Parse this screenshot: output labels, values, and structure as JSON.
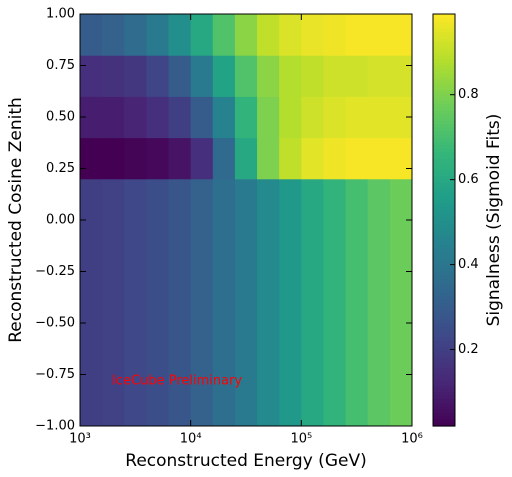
{
  "chart_data": {
    "type": "heatmap",
    "xlabel": "Reconstructed Energy (GeV)",
    "ylabel": "Reconstructed Cosine Zenith",
    "colorbar_label": "Signalness (Sigmoid Fits)",
    "annotation": "IceCube Preliminary",
    "annotation_color": "#ff0000",
    "colormap": "viridis",
    "log_x": true,
    "xlim": [
      1000,
      1000000
    ],
    "ylim": [
      -1,
      1
    ],
    "zlim": [
      0.02,
      0.99
    ],
    "xticks": [
      {
        "value": 1000,
        "label": "10³"
      },
      {
        "value": 10000,
        "label": "10⁴"
      },
      {
        "value": 100000,
        "label": "10⁵"
      },
      {
        "value": 1000000,
        "label": "10⁶"
      }
    ],
    "yticks": [
      {
        "value": -1,
        "label": "−1.00"
      },
      {
        "value": -0.75,
        "label": "−0.75"
      },
      {
        "value": -0.5,
        "label": "−0.50"
      },
      {
        "value": -0.25,
        "label": "−0.25"
      },
      {
        "value": 0,
        "label": "0.00"
      },
      {
        "value": 0.25,
        "label": "0.25"
      },
      {
        "value": 0.5,
        "label": "0.50"
      },
      {
        "value": 0.75,
        "label": "0.75"
      },
      {
        "value": 1,
        "label": "1.00"
      }
    ],
    "zticks": [
      0.2,
      0.4,
      0.6,
      0.8
    ],
    "x_edges": [
      1000,
      1584.89,
      2511.89,
      3981.07,
      6309.57,
      10000,
      15848.9,
      25118.9,
      39810.7,
      63095.7,
      100000,
      158489,
      251189,
      398107,
      630957,
      1000000
    ],
    "y_edges": [
      -1,
      0.2,
      0.4,
      0.6,
      0.8,
      1
    ],
    "values": [
      [
        0.2,
        0.21,
        0.23,
        0.25,
        0.28,
        0.32,
        0.37,
        0.42,
        0.48,
        0.54,
        0.6,
        0.65,
        0.7,
        0.74,
        0.77
      ],
      [
        0.02,
        0.02,
        0.03,
        0.04,
        0.07,
        0.15,
        0.35,
        0.6,
        0.8,
        0.9,
        0.95,
        0.97,
        0.98,
        0.98,
        0.98
      ],
      [
        0.1,
        0.1,
        0.12,
        0.15,
        0.2,
        0.3,
        0.45,
        0.65,
        0.8,
        0.88,
        0.92,
        0.94,
        0.95,
        0.95,
        0.95
      ],
      [
        0.15,
        0.16,
        0.18,
        0.22,
        0.3,
        0.42,
        0.58,
        0.72,
        0.82,
        0.88,
        0.9,
        0.92,
        0.92,
        0.93,
        0.93
      ],
      [
        0.3,
        0.32,
        0.36,
        0.42,
        0.5,
        0.6,
        0.72,
        0.82,
        0.9,
        0.94,
        0.96,
        0.97,
        0.98,
        0.98,
        0.98
      ]
    ]
  }
}
